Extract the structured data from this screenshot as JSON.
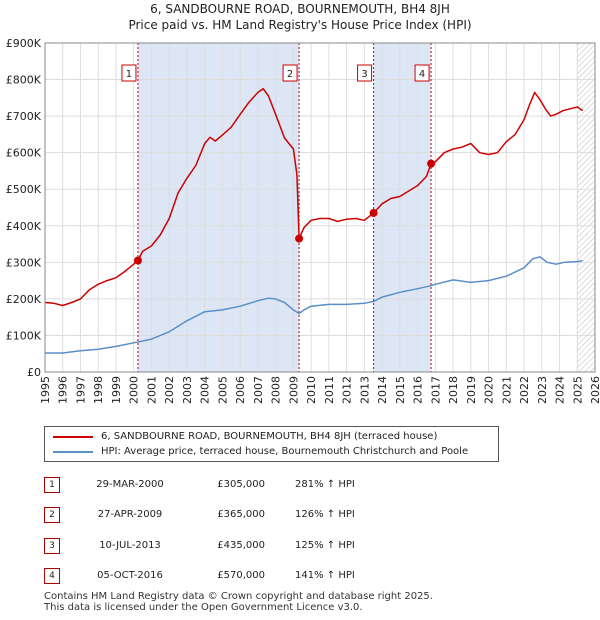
{
  "title": "6, SANDBOURNE ROAD, BOURNEMOUTH, BH4 8JH",
  "subtitle": "Price paid vs. HM Land Registry's House Price Index (HPI)",
  "colors": {
    "price_line": "#cc0000",
    "hpi_line": "#5b8fc7",
    "band": "#dce6f5",
    "marker_line": "#cc0000",
    "grid": "#dddddd"
  },
  "legend": {
    "price_label": "6, SANDBOURNE ROAD, BOURNEMOUTH, BH4 8JH (terraced house)",
    "hpi_label": "HPI: Average price, terraced house, Bournemouth Christchurch and Poole"
  },
  "transactions": [
    {
      "num": "1",
      "date": "29-MAR-2000",
      "price": "£305,000",
      "hpi": "281% ↑ HPI"
    },
    {
      "num": "2",
      "date": "27-APR-2009",
      "price": "£365,000",
      "hpi": "126% ↑ HPI"
    },
    {
      "num": "3",
      "date": "10-JUL-2013",
      "price": "£435,000",
      "hpi": "125% ↑ HPI"
    },
    {
      "num": "4",
      "date": "05-OCT-2016",
      "price": "£570,000",
      "hpi": "141% ↑ HPI"
    }
  ],
  "footer": {
    "line1": "Contains HM Land Registry data © Crown copyright and database right 2025.",
    "line2": "This data is licensed under the Open Government Licence v3.0."
  },
  "chart_data": {
    "type": "line",
    "title": "6, SANDBOURNE ROAD, BOURNEMOUTH, BH4 8JH",
    "subtitle": "Price paid vs. HM Land Registry's House Price Index (HPI)",
    "xlabel": "",
    "ylabel": "",
    "xlim": [
      1995,
      2026
    ],
    "ylim": [
      0,
      900000
    ],
    "x_ticks": [
      1995,
      1996,
      1997,
      1998,
      1999,
      2000,
      2001,
      2002,
      2003,
      2004,
      2005,
      2006,
      2007,
      2008,
      2009,
      2010,
      2011,
      2012,
      2013,
      2014,
      2015,
      2016,
      2017,
      2018,
      2019,
      2020,
      2021,
      2022,
      2023,
      2024,
      2025,
      2026
    ],
    "y_ticks": [
      {
        "value": 0,
        "label": "£0"
      },
      {
        "value": 100000,
        "label": "£100K"
      },
      {
        "value": 200000,
        "label": "£200K"
      },
      {
        "value": 300000,
        "label": "£300K"
      },
      {
        "value": 400000,
        "label": "£400K"
      },
      {
        "value": 500000,
        "label": "£500K"
      },
      {
        "value": 600000,
        "label": "£600K"
      },
      {
        "value": 700000,
        "label": "£700K"
      },
      {
        "value": 800000,
        "label": "£800K"
      },
      {
        "value": 900000,
        "label": "£900K"
      }
    ],
    "grid": true,
    "shaded_periods": [
      [
        2000.24,
        2009.32
      ],
      [
        2013.52,
        2016.76
      ]
    ],
    "future_hatch_from": 2025.0,
    "markers": [
      {
        "label": "1",
        "x": 2000.24,
        "y": 305000
      },
      {
        "label": "2",
        "x": 2009.32,
        "y": 365000
      },
      {
        "label": "3",
        "x": 2013.52,
        "y": 435000
      },
      {
        "label": "4",
        "x": 2016.76,
        "y": 570000
      }
    ],
    "series": [
      {
        "name": "6, SANDBOURNE ROAD, BOURNEMOUTH, BH4 8JH (terraced house)",
        "color": "#cc0000",
        "x": [
          1995.0,
          1995.5,
          1996.0,
          1996.5,
          1997.0,
          1997.5,
          1998.0,
          1998.5,
          1999.0,
          1999.5,
          2000.0,
          2000.24,
          2000.5,
          2001.0,
          2001.5,
          2002.0,
          2002.5,
          2003.0,
          2003.5,
          2004.0,
          2004.3,
          2004.6,
          2005.0,
          2005.5,
          2006.0,
          2006.5,
          2007.0,
          2007.3,
          2007.6,
          2008.0,
          2008.5,
          2009.0,
          2009.2,
          2009.32,
          2009.6,
          2010.0,
          2010.5,
          2011.0,
          2011.5,
          2012.0,
          2012.5,
          2013.0,
          2013.52,
          2014.0,
          2014.5,
          2015.0,
          2015.5,
          2016.0,
          2016.5,
          2016.76,
          2017.0,
          2017.5,
          2018.0,
          2018.5,
          2019.0,
          2019.5,
          2020.0,
          2020.5,
          2021.0,
          2021.5,
          2022.0,
          2022.3,
          2022.6,
          2022.9,
          2023.2,
          2023.5,
          2023.8,
          2024.2,
          2024.6,
          2025.0,
          2025.3
        ],
        "values": [
          190000,
          188000,
          182000,
          190000,
          200000,
          225000,
          240000,
          250000,
          258000,
          275000,
          295000,
          305000,
          330000,
          345000,
          375000,
          420000,
          490000,
          530000,
          565000,
          625000,
          642000,
          632000,
          648000,
          670000,
          705000,
          738000,
          765000,
          775000,
          755000,
          705000,
          640000,
          610000,
          540000,
          365000,
          395000,
          415000,
          420000,
          420000,
          412000,
          418000,
          420000,
          415000,
          435000,
          460000,
          475000,
          480000,
          495000,
          510000,
          535000,
          570000,
          575000,
          600000,
          610000,
          615000,
          625000,
          600000,
          595000,
          600000,
          630000,
          650000,
          690000,
          730000,
          765000,
          745000,
          720000,
          700000,
          705000,
          715000,
          720000,
          725000,
          715000
        ]
      },
      {
        "name": "HPI: Average price, terraced house, Bournemouth Christchurch and Poole",
        "color": "#5b8fc7",
        "x": [
          1995.0,
          1996.0,
          1997.0,
          1998.0,
          1999.0,
          2000.0,
          2001.0,
          2002.0,
          2003.0,
          2004.0,
          2005.0,
          2006.0,
          2007.0,
          2007.6,
          2008.0,
          2008.5,
          2009.0,
          2009.32,
          2009.6,
          2010.0,
          2011.0,
          2012.0,
          2013.0,
          2013.52,
          2014.0,
          2015.0,
          2016.0,
          2016.76,
          2017.0,
          2018.0,
          2019.0,
          2020.0,
          2021.0,
          2022.0,
          2022.5,
          2022.9,
          2023.3,
          2023.8,
          2024.3,
          2025.0,
          2025.3
        ],
        "values": [
          52000,
          52000,
          58000,
          62000,
          70000,
          80000,
          90000,
          110000,
          140000,
          165000,
          170000,
          180000,
          195000,
          202000,
          200000,
          190000,
          170000,
          160000,
          170000,
          180000,
          185000,
          185000,
          188000,
          193000,
          205000,
          218000,
          228000,
          236000,
          240000,
          252000,
          245000,
          250000,
          262000,
          285000,
          310000,
          315000,
          300000,
          295000,
          300000,
          302000,
          305000
        ]
      }
    ]
  }
}
